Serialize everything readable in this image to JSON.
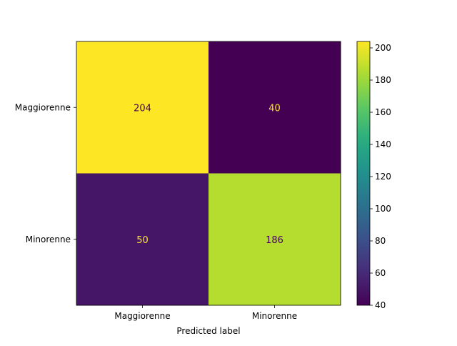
{
  "chart_data": {
    "type": "heatmap",
    "title": "",
    "xlabel": "Predicted label",
    "ylabel": "",
    "x_categories": [
      "Maggiorenne",
      "Minorenne"
    ],
    "y_categories": [
      "Maggiorenne",
      "Minorenne"
    ],
    "values": [
      [
        204,
        40
      ],
      [
        50,
        186
      ]
    ],
    "colormap": "viridis",
    "colorbar": {
      "min": 40,
      "max": 204,
      "ticks": [
        40,
        60,
        80,
        100,
        120,
        140,
        160,
        180,
        200
      ]
    },
    "cell_text_colors": {
      "on_bright": "#440154",
      "on_dark": "#fde725"
    },
    "grid": false
  }
}
